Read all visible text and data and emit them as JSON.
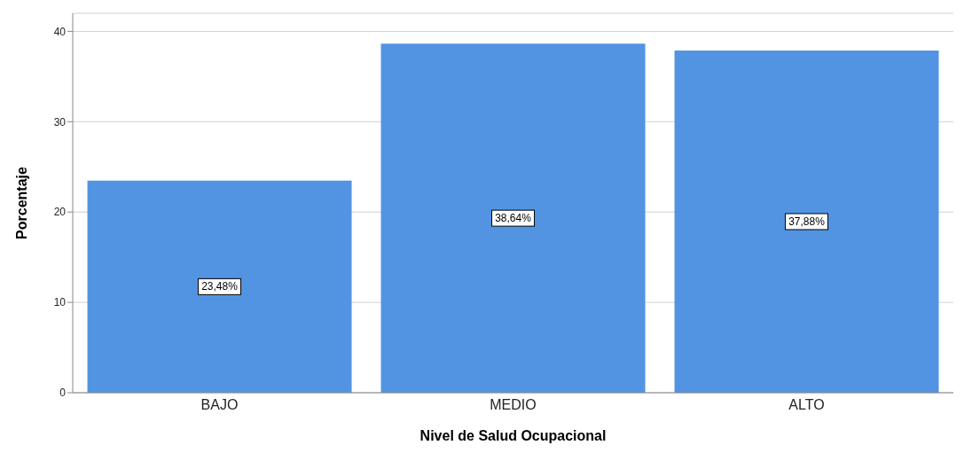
{
  "chart_data": {
    "type": "bar",
    "xlabel": "Nivel de Salud Ocupacional",
    "ylabel": "Porcentaje",
    "categories": [
      "BAJO",
      "MEDIO",
      "ALTO"
    ],
    "values": [
      23.48,
      38.64,
      37.88
    ],
    "value_labels": [
      "23,48%",
      "38,64%",
      "37,88%"
    ],
    "color": "#5294e2",
    "ylim": [
      0,
      42
    ],
    "yticks": [
      0,
      10,
      20,
      30,
      40
    ],
    "grid": "y"
  }
}
